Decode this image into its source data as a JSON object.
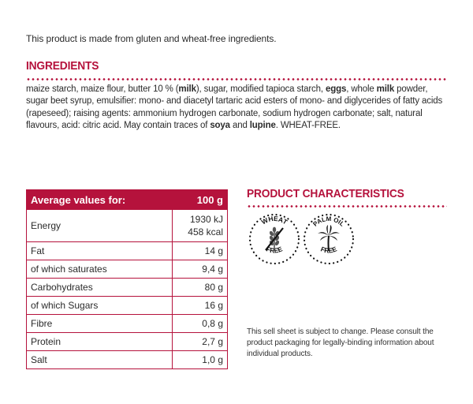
{
  "intro": "This product is made from gluten and wheat-free ingredients.",
  "ingredients": {
    "title": "INGREDIENTS",
    "segments": [
      {
        "text": "maize starch, maize flour, butter 10 % (",
        "bold": false
      },
      {
        "text": "milk",
        "bold": true
      },
      {
        "text": "), sugar, modified tapioca starch, ",
        "bold": false
      },
      {
        "text": "eggs",
        "bold": true
      },
      {
        "text": ", whole ",
        "bold": false
      },
      {
        "text": "milk",
        "bold": true
      },
      {
        "text": " powder, sugar beet syrup, emulsifier: mono- and diacetyl tartaric acid esters of mono- and diglycerides of fatty acids (rapeseed); raising agents: ammonium hydrogen carbonate, sodium hydrogen carbonate; salt, natural flavours, acid: citric acid. May contain traces of ",
        "bold": false
      },
      {
        "text": "soya",
        "bold": true
      },
      {
        "text": " and ",
        "bold": false
      },
      {
        "text": "lupine",
        "bold": true
      },
      {
        "text": ". WHEAT-FREE.",
        "bold": false
      }
    ]
  },
  "nutrition": {
    "header_label": "Average values for:",
    "header_value": "100 g",
    "energy_label": "Energy",
    "energy_kj": "1930 kJ",
    "energy_kcal": "458 kcal",
    "rows": [
      {
        "label": "Fat",
        "value": "14 g"
      },
      {
        "label": "of which saturates",
        "value": "9,4 g"
      },
      {
        "label": "Carbohydrates",
        "value": "80 g"
      },
      {
        "label": "of which Sugars",
        "value": "16 g"
      },
      {
        "label": "Fibre",
        "value": "0,8 g"
      },
      {
        "label": "Protein",
        "value": "2,7 g"
      },
      {
        "label": "Salt",
        "value": "1,0 g"
      }
    ]
  },
  "characteristics": {
    "title": "PRODUCT CHARACTERISTICS",
    "badges": [
      {
        "icon": "wheat-free-icon",
        "top_text": "WHEAT",
        "bottom_text": "FREE"
      },
      {
        "icon": "palm-oil-free-icon",
        "top_text": "PALM OIL",
        "bottom_text": "FREE"
      }
    ]
  },
  "disclaimer": "This sell sheet is subject to change. Please consult the product packaging for legally-binding information about individual products.",
  "colors": {
    "accent": "#b5123c",
    "text": "#2b2b2b"
  }
}
